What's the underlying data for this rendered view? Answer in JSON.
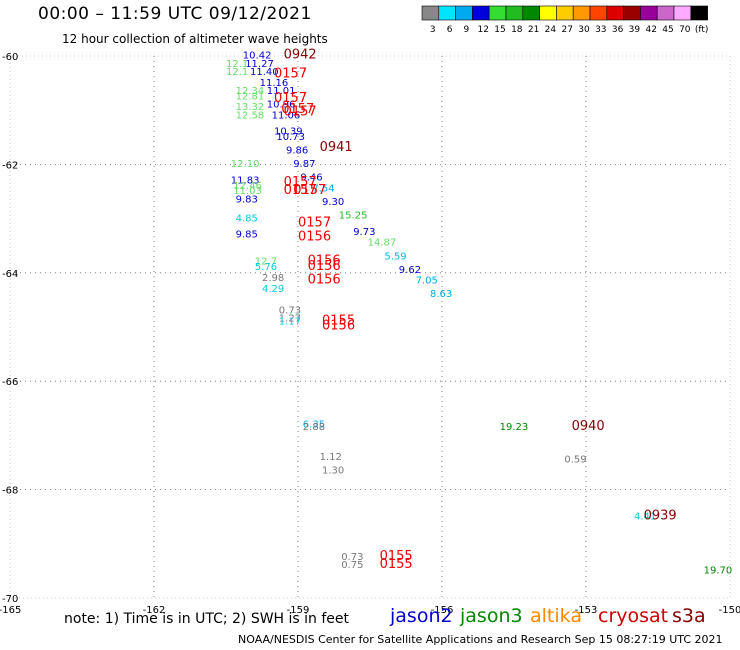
{
  "title": "00:00 – 11:59 UTC 09/12/2021",
  "subtitle": "12 hour collection of altimeter wave heights",
  "note": "note: 1) Time is in UTC; 2) SWH is in feet",
  "credit": "NOAA/NESDIS Center for Satellite Applications and Research   Sep 15 08:27:19 UTC 2021",
  "missions": [
    {
      "label": "jason2",
      "color": "#0000cc"
    },
    {
      "label": "jason3",
      "color": "#008800"
    },
    {
      "label": "altika",
      "color": "#ff8800"
    },
    {
      "label": "cryosat",
      "color": "#cc0000"
    },
    {
      "label": "s3a",
      "color": "#880000"
    }
  ],
  "color_scale": {
    "labels": [
      "3",
      "6",
      "9",
      "12",
      "15",
      "18",
      "21",
      "24",
      "27",
      "30",
      "33",
      "36",
      "39",
      "42",
      "45",
      "70",
      "(ft)"
    ],
    "colors": [
      "#888888",
      "#00e5ff",
      "#00aaee",
      "#0000dd",
      "#33dd33",
      "#22bb22",
      "#008800",
      "#ffff00",
      "#ffcc00",
      "#ff9900",
      "#ff4400",
      "#dd0000",
      "#990000",
      "#990099",
      "#cc66cc",
      "#ffaaff",
      "#000000"
    ]
  },
  "axes": {
    "lon_ticks": [
      "-165",
      "-162",
      "-159",
      "-156",
      "-153",
      "-150"
    ],
    "lat_ticks": [
      "-60",
      "-62",
      "-64",
      "-66",
      "-68",
      "-70"
    ]
  },
  "observations": [
    {
      "lon": -160.15,
      "lat": -60.05,
      "label": "10.42",
      "color": "#0000cc"
    },
    {
      "lon": -160.1,
      "lat": -60.2,
      "label": "11.27",
      "color": "#0000cc"
    },
    {
      "lon": -160.5,
      "lat": -60.2,
      "label": "12.1",
      "color": "#66dd66"
    },
    {
      "lon": -160.5,
      "lat": -60.35,
      "label": "12.1",
      "color": "#66dd66"
    },
    {
      "lon": -160.0,
      "lat": -60.35,
      "label": "11.40",
      "color": "#0000cc"
    },
    {
      "lon": -159.8,
      "lat": -60.55,
      "label": "11.16",
      "color": "#0000cc"
    },
    {
      "lon": -160.3,
      "lat": -60.7,
      "label": "12.34",
      "color": "#66dd66"
    },
    {
      "lon": -160.3,
      "lat": -60.8,
      "label": "12.81",
      "color": "#66dd66"
    },
    {
      "lon": -159.65,
      "lat": -60.7,
      "label": "11.01",
      "color": "#0000cc"
    },
    {
      "lon": -159.65,
      "lat": -60.95,
      "label": "10.96",
      "color": "#0000cc"
    },
    {
      "lon": -160.3,
      "lat": -61.0,
      "label": "13.32",
      "color": "#66dd66"
    },
    {
      "lon": -160.3,
      "lat": -61.15,
      "label": "12.58",
      "color": "#66dd66"
    },
    {
      "lon": -159.55,
      "lat": -61.15,
      "label": "11.06",
      "color": "#0000cc"
    },
    {
      "lon": -159.5,
      "lat": -61.45,
      "label": "10.39",
      "color": "#0000cc"
    },
    {
      "lon": -159.45,
      "lat": -61.55,
      "label": "10.73",
      "color": "#0000cc"
    },
    {
      "lon": -159.25,
      "lat": -61.8,
      "label": "9.86",
      "color": "#0000cc"
    },
    {
      "lon": -159.1,
      "lat": -62.05,
      "label": "9.87",
      "color": "#0000cc"
    },
    {
      "lon": -158.95,
      "lat": -62.3,
      "label": "9.46",
      "color": "#0000cc"
    },
    {
      "lon": -160.4,
      "lat": -62.05,
      "label": "12.10",
      "color": "#66dd66"
    },
    {
      "lon": -160.4,
      "lat": -62.35,
      "label": "11.83",
      "color": "#0000cc"
    },
    {
      "lon": -160.35,
      "lat": -62.45,
      "label": "12.46",
      "color": "#66dd66"
    },
    {
      "lon": -160.35,
      "lat": -62.55,
      "label": "11.03",
      "color": "#66dd66"
    },
    {
      "lon": -160.3,
      "lat": -62.7,
      "label": "9.83",
      "color": "#0000cc"
    },
    {
      "lon": -158.7,
      "lat": -62.5,
      "label": "7.54",
      "color": "#00aaee"
    },
    {
      "lon": -158.5,
      "lat": -62.75,
      "label": "9.30",
      "color": "#0000cc"
    },
    {
      "lon": -158.15,
      "lat": -63.0,
      "label": "15.25",
      "color": "#22bb22"
    },
    {
      "lon": -157.85,
      "lat": -63.3,
      "label": "9.73",
      "color": "#0000cc"
    },
    {
      "lon": -157.55,
      "lat": -63.5,
      "label": "14.87",
      "color": "#66dd66"
    },
    {
      "lon": -157.2,
      "lat": -63.75,
      "label": "5.59",
      "color": "#00bbdd"
    },
    {
      "lon": -156.9,
      "lat": -64.0,
      "label": "9.62",
      "color": "#0000cc"
    },
    {
      "lon": -156.55,
      "lat": -64.2,
      "label": "7.05",
      "color": "#00aaee"
    },
    {
      "lon": -156.25,
      "lat": -64.45,
      "label": "8.63",
      "color": "#00aaee"
    },
    {
      "lon": -160.3,
      "lat": -63.05,
      "label": "4.85",
      "color": "#00ccdd"
    },
    {
      "lon": -160.3,
      "lat": -63.35,
      "label": "9.85",
      "color": "#0000cc"
    },
    {
      "lon": -159.9,
      "lat": -63.85,
      "label": "12.7",
      "color": "#66dd66"
    },
    {
      "lon": -159.9,
      "lat": -63.95,
      "label": "5.76",
      "color": "#00ccdd"
    },
    {
      "lon": -159.75,
      "lat": -64.15,
      "label": "2.98",
      "color": "#777777"
    },
    {
      "lon": -159.75,
      "lat": -64.35,
      "label": "4.29",
      "color": "#00ccdd"
    },
    {
      "lon": -159.4,
      "lat": -64.75,
      "label": "0.73",
      "color": "#777777"
    },
    {
      "lon": -159.4,
      "lat": -64.9,
      "label": "1.27",
      "color": "#777777"
    },
    {
      "lon": -159.4,
      "lat": -64.95,
      "label": "1.17",
      "color": "#00ccdd"
    },
    {
      "lon": -158.9,
      "lat": -66.85,
      "label": "6.35",
      "color": "#00aaee"
    },
    {
      "lon": -158.9,
      "lat": -66.9,
      "label": "2.88",
      "color": "#777777"
    },
    {
      "lon": -158.55,
      "lat": -67.45,
      "label": "1.12",
      "color": "#777777"
    },
    {
      "lon": -158.5,
      "lat": -67.7,
      "label": "1.30",
      "color": "#777777"
    },
    {
      "lon": -154.8,
      "lat": -66.9,
      "label": "19.23",
      "color": "#008800"
    },
    {
      "lon": -153.45,
      "lat": -67.5,
      "label": "0.59",
      "color": "#777777"
    },
    {
      "lon": -152.0,
      "lat": -68.55,
      "label": "4.41",
      "color": "#00ccdd"
    },
    {
      "lon": -150.55,
      "lat": -69.55,
      "label": "19.70",
      "color": "#008800"
    },
    {
      "lon": -158.1,
      "lat": -69.3,
      "label": "0.73",
      "color": "#777777"
    },
    {
      "lon": -158.1,
      "lat": -69.45,
      "label": "0.75",
      "color": "#777777"
    }
  ],
  "passes": [
    {
      "lon": -159.3,
      "lat": -60.05,
      "label": "0942",
      "color": "#880000"
    },
    {
      "lon": -159.5,
      "lat": -60.4,
      "label": "0157",
      "color": "#ee0000"
    },
    {
      "lon": -159.5,
      "lat": -60.85,
      "label": "0157",
      "color": "#ee0000"
    },
    {
      "lon": -159.3,
      "lat": -61.1,
      "label": "0157",
      "color": "#ee0000"
    },
    {
      "lon": -159.35,
      "lat": -61.05,
      "label": "0157",
      "color": "#ee0000"
    },
    {
      "lon": -158.55,
      "lat": -61.75,
      "label": "0941",
      "color": "#880000"
    },
    {
      "lon": -159.3,
      "lat": -62.4,
      "label": "0157",
      "color": "#ee0000"
    },
    {
      "lon": -159.3,
      "lat": -62.55,
      "label": "0157",
      "color": "#ee0000"
    },
    {
      "lon": -159.1,
      "lat": -62.55,
      "label": "0157",
      "color": "#ee0000"
    },
    {
      "lon": -159.0,
      "lat": -63.15,
      "label": "0157",
      "color": "#ee0000"
    },
    {
      "lon": -159.0,
      "lat": -63.4,
      "label": "0156",
      "color": "#ee0000"
    },
    {
      "lon": -158.8,
      "lat": -63.85,
      "label": "0156",
      "color": "#ee0000"
    },
    {
      "lon": -158.8,
      "lat": -63.95,
      "label": "0156",
      "color": "#ee0000"
    },
    {
      "lon": -158.8,
      "lat": -64.2,
      "label": "0156",
      "color": "#ee0000"
    },
    {
      "lon": -158.5,
      "lat": -64.95,
      "label": "0155",
      "color": "#ee0000"
    },
    {
      "lon": -158.5,
      "lat": -65.05,
      "label": "0156",
      "color": "#ee0000"
    },
    {
      "lon": -153.3,
      "lat": -66.9,
      "label": "0940",
      "color": "#880000"
    },
    {
      "lon": -151.8,
      "lat": -68.55,
      "label": "0939",
      "color": "#880000"
    },
    {
      "lon": -157.3,
      "lat": -69.3,
      "label": "0155",
      "color": "#ee0000"
    },
    {
      "lon": -157.3,
      "lat": -69.45,
      "label": "0155",
      "color": "#ee0000"
    }
  ]
}
